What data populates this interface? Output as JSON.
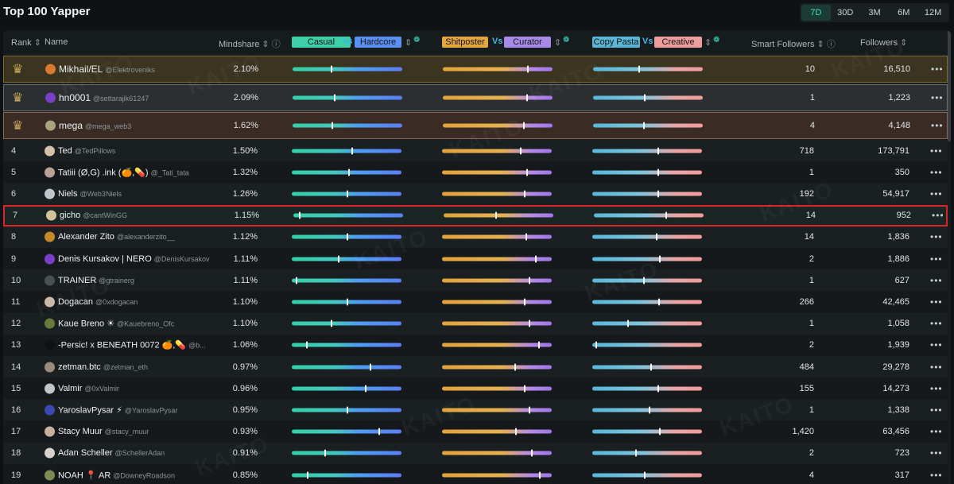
{
  "title": "Top 100 Yapper",
  "time_ranges": [
    {
      "label": "7D",
      "active": true
    },
    {
      "label": "30D",
      "active": false
    },
    {
      "label": "3M",
      "active": false
    },
    {
      "label": "6M",
      "active": false
    },
    {
      "label": "12M",
      "active": false
    }
  ],
  "columns": {
    "rank": "Rank",
    "name": "Name",
    "mindshare": "Mindshare",
    "casual": "Casual",
    "vs": "Vs",
    "hardcore": "Hardcore",
    "shitposter": "Shitposter",
    "curator": "Curator",
    "copy_pasta": "Copy Pasta",
    "creative": "Creative",
    "smart_followers": "Smart Followers",
    "followers": "Followers"
  },
  "colors": {
    "casual": "#3ecfa9",
    "hardcore": "#5b8ff2",
    "shitposter": "#e5a640",
    "curator": "#a78ae8",
    "copy_pasta": "#5bb6d6",
    "creative": "#ee9d9d",
    "accent": "#3ee0c0",
    "highlight_border": "#d8262a"
  },
  "watermark": "KAITO",
  "rows": [
    {
      "rank": "1",
      "crown": "gold",
      "name": "Mikhail/EL",
      "handle": "@Elektroveniks",
      "mindshare": "2.10%",
      "smart_followers": "10",
      "followers": "16,510",
      "m1": 0.35,
      "m2": 0.78,
      "m3": 0.42,
      "avatar": "#d9782e"
    },
    {
      "rank": "2",
      "crown": "silver",
      "name": "hn0001",
      "handle": "@settarajik61247",
      "mindshare": "2.09%",
      "smart_followers": "1",
      "followers": "1,223",
      "m1": 0.38,
      "m2": 0.77,
      "m3": 0.47,
      "avatar": "#7a3fc9"
    },
    {
      "rank": "3",
      "crown": "bronze",
      "name": "mega",
      "handle": "@mega_web3",
      "mindshare": "1.62%",
      "smart_followers": "4",
      "followers": "4,148",
      "m1": 0.36,
      "m2": 0.74,
      "m3": 0.46,
      "avatar": "#a8a47c"
    },
    {
      "rank": "4",
      "name": "Ted",
      "handle": "@TedPillows",
      "mindshare": "1.50%",
      "smart_followers": "718",
      "followers": "173,791",
      "m1": 0.55,
      "m2": 0.72,
      "m3": 0.6,
      "avatar": "#d6c0a8"
    },
    {
      "rank": "5",
      "name": "Tatiii (Ø,G) .ink (🍊,💊)",
      "handle": "@_Tati_tata",
      "mindshare": "1.32%",
      "smart_followers": "1",
      "followers": "350",
      "m1": 0.52,
      "m2": 0.78,
      "m3": 0.6,
      "avatar": "#b9a196"
    },
    {
      "rank": "6",
      "name": "Niels",
      "handle": "@Web3Niels",
      "mindshare": "1.26%",
      "smart_followers": "192",
      "followers": "54,917",
      "m1": 0.51,
      "m2": 0.76,
      "m3": 0.6,
      "avatar": "#c0c6cc"
    },
    {
      "rank": "7",
      "name": "gicho",
      "handle": "@cantWinGG",
      "mindshare": "1.15%",
      "smart_followers": "14",
      "followers": "952",
      "m1": 0.05,
      "m2": 0.48,
      "m3": 0.66,
      "avatar": "#d4c29a",
      "highlight": true
    },
    {
      "rank": "8",
      "name": "Alexander Zito",
      "handle": "@alexanderzito__",
      "mindshare": "1.12%",
      "smart_followers": "14",
      "followers": "1,836",
      "m1": 0.51,
      "m2": 0.77,
      "m3": 0.59,
      "avatar": "#c48a2a"
    },
    {
      "rank": "9",
      "name": "Denis Kursakov | NERO",
      "handle": "@DenisKursakov",
      "mindshare": "1.11%",
      "smart_followers": "2",
      "followers": "1,886",
      "m1": 0.43,
      "m2": 0.86,
      "m3": 0.62,
      "avatar": "#7a3fc9"
    },
    {
      "rank": "10",
      "name": "TRAINER",
      "handle": "@gtrainerg",
      "mindshare": "1.11%",
      "smart_followers": "1",
      "followers": "627",
      "m1": 0.04,
      "m2": 0.8,
      "m3": 0.47,
      "avatar": "#4a4f55"
    },
    {
      "rank": "11",
      "name": "Dogacan",
      "handle": "@0xdogacan",
      "mindshare": "1.10%",
      "smart_followers": "266",
      "followers": "42,465",
      "m1": 0.51,
      "m2": 0.76,
      "m3": 0.61,
      "avatar": "#cdb7a5"
    },
    {
      "rank": "12",
      "name": "Kaue Breno ☀",
      "handle": "@Kauebreno_Ofc",
      "mindshare": "1.10%",
      "smart_followers": "1",
      "followers": "1,058",
      "m1": 0.36,
      "m2": 0.8,
      "m3": 0.32,
      "avatar": "#6a7a3a"
    },
    {
      "rank": "13",
      "name": "-Persic! x BENEATH 0072 🍊,💊",
      "handle": "@b...",
      "mindshare": "1.06%",
      "smart_followers": "2",
      "followers": "1,939",
      "m1": 0.13,
      "m2": 0.89,
      "m3": 0.03,
      "avatar": "#0f1214"
    },
    {
      "rank": "14",
      "name": "zetman.btc",
      "handle": "@zetman_eth",
      "mindshare": "0.97%",
      "smart_followers": "484",
      "followers": "29,278",
      "m1": 0.72,
      "m2": 0.67,
      "m3": 0.54,
      "avatar": "#9a8a7a"
    },
    {
      "rank": "15",
      "name": "Valmir",
      "handle": "@0xValmir",
      "mindshare": "0.96%",
      "smart_followers": "155",
      "followers": "14,273",
      "m1": 0.68,
      "m2": 0.76,
      "m3": 0.6,
      "avatar": "#c1c5c8"
    },
    {
      "rank": "16",
      "name": "YaroslavPysar ⚡",
      "handle": "@YaroslavPysar",
      "mindshare": "0.95%",
      "smart_followers": "1",
      "followers": "1,338",
      "m1": 0.51,
      "m2": 0.8,
      "m3": 0.52,
      "avatar": "#3a4ab0"
    },
    {
      "rank": "17",
      "name": "Stacy Muur",
      "handle": "@stacy_muur",
      "mindshare": "0.93%",
      "smart_followers": "1,420",
      "followers": "63,456",
      "m1": 0.8,
      "m2": 0.68,
      "m3": 0.62,
      "avatar": "#c8b09a"
    },
    {
      "rank": "18",
      "name": "Adan Scheller",
      "handle": "@SchellerAdan",
      "mindshare": "0.91%",
      "smart_followers": "2",
      "followers": "723",
      "m1": 0.3,
      "m2": 0.82,
      "m3": 0.4,
      "avatar": "#d8d2cc"
    },
    {
      "rank": "19",
      "name": "NOAH 📍 AR",
      "handle": "@DowneyRoadson",
      "mindshare": "0.85%",
      "smart_followers": "4",
      "followers": "317",
      "m1": 0.14,
      "m2": 0.9,
      "m3": 0.48,
      "avatar": "#7c8a56"
    }
  ]
}
